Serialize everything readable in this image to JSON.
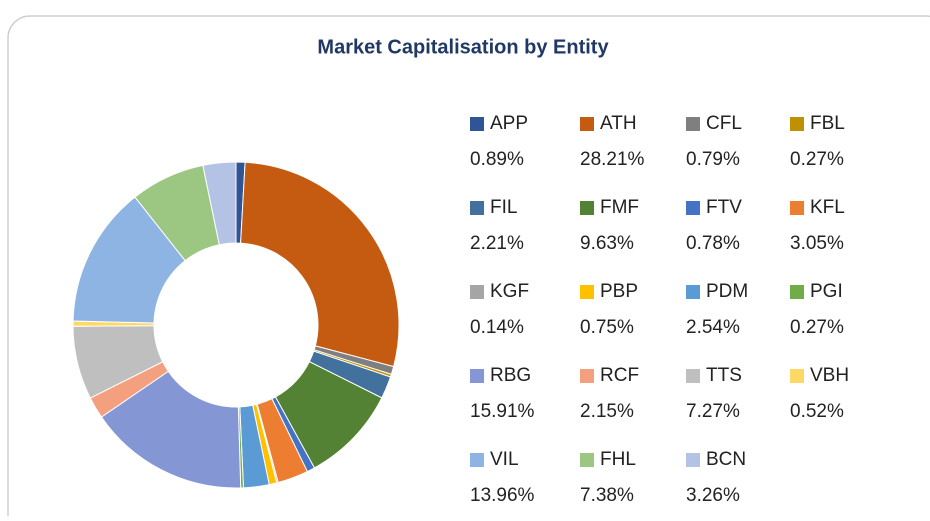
{
  "chart_data": {
    "type": "donut",
    "title": "Market Capitalisation by Entity",
    "categories": [
      "APP",
      "ATH",
      "CFL",
      "FBL",
      "FIL",
      "FMF",
      "FTV",
      "KFL",
      "KGF",
      "PBP",
      "PDM",
      "PGI",
      "RBG",
      "RCF",
      "TTS",
      "VBH",
      "VIL",
      "FHL",
      "BCN"
    ],
    "values": [
      0.89,
      28.21,
      0.79,
      0.27,
      2.21,
      9.63,
      0.78,
      3.05,
      0.14,
      0.75,
      2.54,
      0.27,
      15.91,
      2.15,
      7.27,
      0.52,
      13.96,
      7.38,
      3.26
    ],
    "value_labels": [
      "0.89%",
      "28.21%",
      "0.79%",
      "0.27%",
      "2.21%",
      "9.63%",
      "0.78%",
      "3.05%",
      "0.14%",
      "0.75%",
      "2.54%",
      "0.27%",
      "15.91%",
      "2.15%",
      "7.27%",
      "0.52%",
      "13.96%",
      "7.38%",
      "3.26%"
    ],
    "colors": [
      "#2f5597",
      "#c55a11",
      "#7f7f7f",
      "#bf9000",
      "#41719c",
      "#548235",
      "#4472c4",
      "#ed7d31",
      "#a5a5a5",
      "#ffc000",
      "#5b9bd5",
      "#70ad47",
      "#8497d4",
      "#f4a07e",
      "#bfbfbf",
      "#ffd966",
      "#8db4e2",
      "#9cc783",
      "#b4c2e6"
    ],
    "legend": "right"
  }
}
